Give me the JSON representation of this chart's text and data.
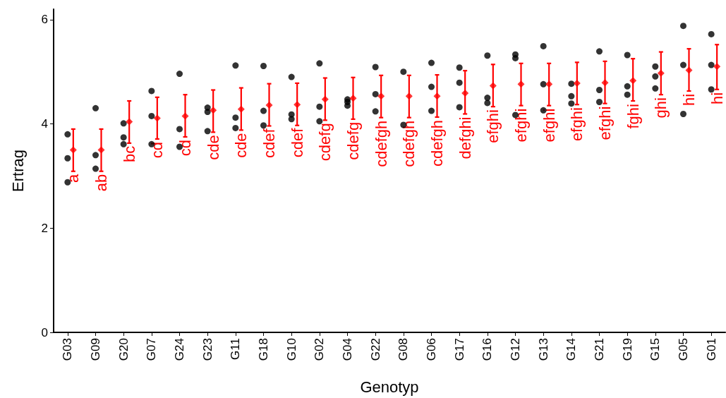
{
  "chart_data": {
    "type": "scatter",
    "xlabel": "Genotyp",
    "ylabel": "Ertrag",
    "categories": [
      "G03",
      "G09",
      "G20",
      "G07",
      "G24",
      "G23",
      "G11",
      "G18",
      "G10",
      "G02",
      "G04",
      "G22",
      "G08",
      "G06",
      "G17",
      "G16",
      "G12",
      "G13",
      "G14",
      "G21",
      "G19",
      "G15",
      "G05",
      "G01"
    ],
    "ylim": [
      0,
      6.2
    ],
    "yticks": [
      0,
      2,
      4,
      6
    ],
    "grid": false,
    "marker": "circle",
    "series": [
      {
        "color": "#000000",
        "x": [
          "G03",
          "G03",
          "G03",
          "G09",
          "G09",
          "G09",
          "G20",
          "G20",
          "G20",
          "G07",
          "G07",
          "G07",
          "G24",
          "G24",
          "G24",
          "G23",
          "G23",
          "G23",
          "G11",
          "G11",
          "G11",
          "G18",
          "G18",
          "G18",
          "G10",
          "G10",
          "G10",
          "G02",
          "G02",
          "G02",
          "G04",
          "G04",
          "G04",
          "G22",
          "G22",
          "G22",
          "G08",
          "G08",
          "G06",
          "G06",
          "G06",
          "G17",
          "G17",
          "G17",
          "G16",
          "G16",
          "G16",
          "G12",
          "G12",
          "G12",
          "G13",
          "G13",
          "G13",
          "G14",
          "G14",
          "G14",
          "G21",
          "G21",
          "G21",
          "G19",
          "G19",
          "G19",
          "G15",
          "G15",
          "G15",
          "G05",
          "G05",
          "G05",
          "G01",
          "G01",
          "G01"
        ],
        "values": [
          3.8,
          3.34,
          2.88,
          4.3,
          3.4,
          3.14,
          4.01,
          3.74,
          3.61,
          4.63,
          4.15,
          3.61,
          4.96,
          3.9,
          3.56,
          4.31,
          4.23,
          3.86,
          5.12,
          4.12,
          3.92,
          5.11,
          4.25,
          3.97,
          4.9,
          4.18,
          4.09,
          5.16,
          4.33,
          4.05,
          4.47,
          4.42,
          4.35,
          5.09,
          4.57,
          4.24,
          5.0,
          3.98,
          5.17,
          4.71,
          4.25,
          5.08,
          4.79,
          4.32,
          5.31,
          4.5,
          4.4,
          5.33,
          5.26,
          4.17,
          5.49,
          4.76,
          4.26,
          4.77,
          4.53,
          4.39,
          5.39,
          4.65,
          4.42,
          5.32,
          4.72,
          4.56,
          5.1,
          4.91,
          4.68,
          5.88,
          5.13,
          4.19,
          5.72,
          5.13,
          4.66
        ]
      },
      {
        "color": "#ff0000",
        "marker": "diamond",
        "values": [
          3.5,
          3.5,
          4.04,
          4.11,
          4.15,
          4.26,
          4.28,
          4.36,
          4.37,
          4.47,
          4.49,
          4.53,
          4.53,
          4.53,
          4.59,
          4.73,
          4.76,
          4.76,
          4.78,
          4.79,
          4.83,
          4.97,
          5.03,
          5.1
        ],
        "errors": [
          [
            3.09,
            3.9
          ],
          [
            3.09,
            3.9
          ],
          [
            3.63,
            4.44
          ],
          [
            3.71,
            4.51
          ],
          [
            3.75,
            4.56
          ],
          [
            3.84,
            4.65
          ],
          [
            3.88,
            4.69
          ],
          [
            3.96,
            4.77
          ],
          [
            3.97,
            4.78
          ],
          [
            4.07,
            4.88
          ],
          [
            4.09,
            4.89
          ],
          [
            4.12,
            4.93
          ],
          [
            4.12,
            4.93
          ],
          [
            4.13,
            4.94
          ],
          [
            4.19,
            5.02
          ],
          [
            4.33,
            5.14
          ],
          [
            4.35,
            5.16
          ],
          [
            4.35,
            5.16
          ],
          [
            4.37,
            5.18
          ],
          [
            4.39,
            5.2
          ],
          [
            4.44,
            5.25
          ],
          [
            4.56,
            5.38
          ],
          [
            4.63,
            5.44
          ],
          [
            4.66,
            5.52
          ]
        ]
      }
    ],
    "annotations": [
      {
        "text": "a",
        "x": "G03",
        "y": 3.09
      },
      {
        "text": "ab",
        "x": "G09",
        "y": 3.09
      },
      {
        "text": "bc",
        "x": "G20",
        "y": 3.63
      },
      {
        "text": "cd",
        "x": "G07",
        "y": 3.71
      },
      {
        "text": "cd",
        "x": "G24",
        "y": 3.75
      },
      {
        "text": "cde",
        "x": "G23",
        "y": 3.84
      },
      {
        "text": "cde",
        "x": "G11",
        "y": 3.88
      },
      {
        "text": "cdef",
        "x": "G18",
        "y": 3.96
      },
      {
        "text": "cdef",
        "x": "G10",
        "y": 3.97
      },
      {
        "text": "cdefg",
        "x": "G02",
        "y": 4.07
      },
      {
        "text": "cdefg",
        "x": "G04",
        "y": 4.09
      },
      {
        "text": "cdefgh",
        "x": "G22",
        "y": 4.12
      },
      {
        "text": "cdefgh",
        "x": "G08",
        "y": 4.12
      },
      {
        "text": "cdefgh",
        "x": "G06",
        "y": 4.13
      },
      {
        "text": "defghi",
        "x": "G17",
        "y": 4.19
      },
      {
        "text": "efghi",
        "x": "G16",
        "y": 4.33
      },
      {
        "text": "efghi",
        "x": "G12",
        "y": 4.35
      },
      {
        "text": "efghi",
        "x": "G13",
        "y": 4.35
      },
      {
        "text": "efghi",
        "x": "G14",
        "y": 4.37
      },
      {
        "text": "efghi",
        "x": "G21",
        "y": 4.39
      },
      {
        "text": "fghi",
        "x": "G19",
        "y": 4.44
      },
      {
        "text": "ghi",
        "x": "G15",
        "y": 4.56
      },
      {
        "text": "hi",
        "x": "G05",
        "y": 4.63
      },
      {
        "text": "hi",
        "x": "G01",
        "y": 4.66
      }
    ]
  }
}
